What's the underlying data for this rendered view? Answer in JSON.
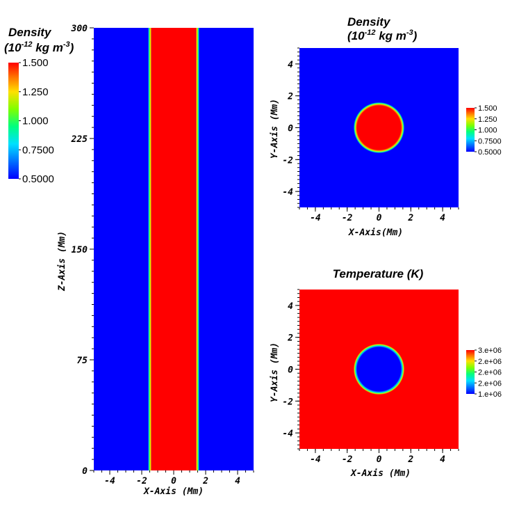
{
  "chart_data": [
    {
      "id": "side",
      "type": "heatmap",
      "title": "",
      "xlabel": "X-Axis (Mm)",
      "ylabel": "Z-Axis (Mm)",
      "xlim": [
        -5,
        5
      ],
      "ylim": [
        0,
        300
      ],
      "xticks": [
        -4,
        -2,
        0,
        2,
        4
      ],
      "xtick_labels": [
        "-4",
        "-2",
        "0",
        "2",
        "4"
      ],
      "yticks": [
        0,
        75,
        150,
        225,
        300
      ],
      "ytick_labels": [
        "0",
        "75",
        "150",
        "225",
        "300"
      ],
      "field": "density",
      "structure": "vertical-column",
      "tube_radius": 1.6,
      "inside_value": 1.5,
      "outside_value": 0.5
    },
    {
      "id": "density-xy",
      "type": "heatmap",
      "title_line1": "Density",
      "title_line2_base": "(10",
      "title_line2_exp": "-12",
      "title_line2_mid": " kg m",
      "title_line2_exp2": "-3",
      "title_line2_end": ")",
      "xlabel": "X-Axis(Mm)",
      "ylabel": "Y-Axis (Mm)",
      "xlim": [
        -5,
        5
      ],
      "ylim": [
        -5,
        5
      ],
      "xticks": [
        -4,
        -2,
        0,
        2,
        4
      ],
      "xtick_labels": [
        "-4",
        "-2",
        "0",
        "2",
        "4"
      ],
      "yticks": [
        -4,
        -2,
        0,
        2,
        4
      ],
      "ytick_labels": [
        "-4",
        "-2",
        "0",
        "2",
        "4"
      ],
      "field": "density",
      "structure": "circle",
      "tube_radius": 1.6,
      "inside_value": 1.5,
      "outside_value": 0.5,
      "colorbar": {
        "range": [
          0.5,
          1.5
        ],
        "tick_values": [
          1.5,
          1.25,
          1.0,
          0.75,
          0.5
        ],
        "tick_labels": [
          "1.500",
          "1.250",
          "1.000",
          "0.7500",
          "0.5000"
        ]
      }
    },
    {
      "id": "temperature-xy",
      "type": "heatmap",
      "title": "Temperature (K)",
      "xlabel": "X-Axis  (Mm)",
      "ylabel": "Y-Axis (Mm)",
      "xlim": [
        -5,
        5
      ],
      "ylim": [
        -5,
        5
      ],
      "xticks": [
        -4,
        -2,
        0,
        2,
        4
      ],
      "xtick_labels": [
        "-4",
        "-2",
        "0",
        "2",
        "4"
      ],
      "yticks": [
        -4,
        -2,
        0,
        2,
        4
      ],
      "ytick_labels": [
        "-4",
        "-2",
        "0",
        "2",
        "4"
      ],
      "field": "temperature",
      "structure": "circle",
      "tube_radius": 1.6,
      "inside_value": 1000000,
      "outside_value": 3000000,
      "colorbar": {
        "range": [
          1000000,
          3000000
        ],
        "tick_values": [
          3000000,
          2500000,
          2000000,
          1500000,
          1000000
        ],
        "tick_labels": [
          "3.e+06",
          "2.e+06",
          "2.e+06",
          "2.e+06",
          "1.e+06"
        ]
      }
    }
  ],
  "main_colorbar": {
    "title_line1": "Density",
    "title_line2_base": "(10",
    "title_line2_exp": "-12",
    "title_line2_mid": " kg m",
    "title_line2_exp2": "-3",
    "title_line2_end": ")",
    "range": [
      0.5,
      1.5
    ],
    "tick_values": [
      1.5,
      1.25,
      1.0,
      0.75,
      0.5
    ],
    "tick_labels": [
      "1.500",
      "1.250",
      "1.000",
      "0.7500",
      "0.5000"
    ]
  },
  "colors": {
    "low": "#0000ff",
    "high": "#ff0000",
    "colormap": [
      "#0000ff",
      "#00b2ff",
      "#00ffff",
      "#00ff50",
      "#a0ff00",
      "#ffff00",
      "#ff8000",
      "#ff0000"
    ]
  }
}
